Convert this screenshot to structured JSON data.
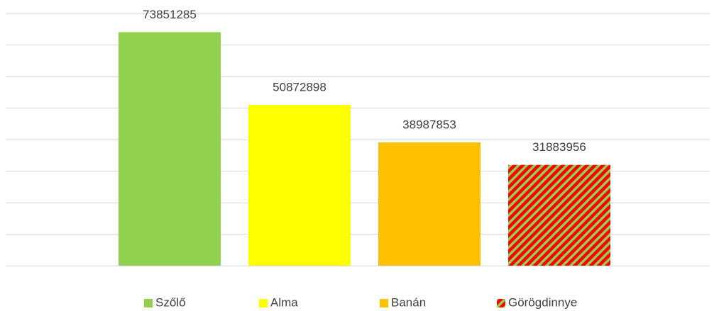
{
  "chart_data": {
    "type": "bar",
    "categories": [
      "Szőlő",
      "Alma",
      "Banán",
      "Görögdinnye"
    ],
    "values": [
      73851285,
      50872898,
      38987853,
      31883956
    ],
    "colors": [
      "#92d050",
      "#ffff00",
      "#ffc000",
      "#ff0000"
    ],
    "hatch_colors": [
      null,
      null,
      null,
      "#92d050"
    ],
    "ylim": [
      0,
      80000000
    ],
    "yticks": [
      0,
      10000000,
      20000000,
      30000000,
      40000000,
      50000000,
      60000000,
      70000000,
      80000000
    ],
    "grid": true,
    "legend": "bottom"
  }
}
